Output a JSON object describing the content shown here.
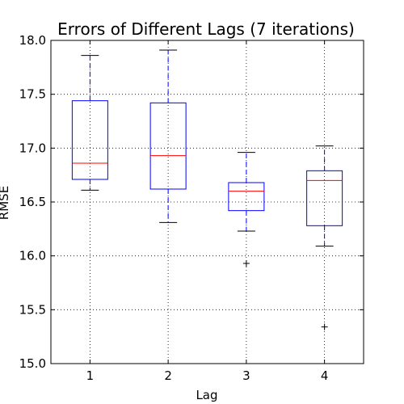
{
  "chart_data": {
    "type": "boxplot",
    "title": "Errors of Different Lags (7 iterations)",
    "xlabel": "Lag",
    "ylabel": "RMSE",
    "categories": [
      "1",
      "2",
      "3",
      "4"
    ],
    "ylim": [
      15.0,
      18.0
    ],
    "yticks": [
      15.0,
      15.5,
      16.0,
      16.5,
      17.0,
      17.5,
      18.0
    ],
    "ytick_labels": [
      "15.0",
      "15.5",
      "16.0",
      "16.5",
      "17.0",
      "17.5",
      "18.0"
    ],
    "grid": true,
    "boxes": [
      {
        "category": "1",
        "whisker_low": 16.61,
        "q1": 16.71,
        "median": 16.86,
        "q3": 17.44,
        "whisker_high": 17.86,
        "outliers": []
      },
      {
        "category": "2",
        "whisker_low": 16.31,
        "q1": 16.62,
        "median": 16.93,
        "q3": 17.42,
        "whisker_high": 17.91,
        "outliers": []
      },
      {
        "category": "3",
        "whisker_low": 16.23,
        "q1": 16.42,
        "median": 16.6,
        "q3": 16.68,
        "whisker_high": 16.96,
        "outliers": [
          15.93
        ]
      },
      {
        "category": "4",
        "whisker_low": 16.09,
        "q1": 16.28,
        "median": 16.7,
        "q3": 16.79,
        "whisker_high": 17.02,
        "outliers": [
          15.34
        ]
      }
    ],
    "colors": {
      "box": "#0000ff",
      "whisker": "#0000ff",
      "median": "#ff0000",
      "cap": "#000000",
      "outlier": "#000000",
      "grid": "#000000",
      "axes": "#000000"
    }
  }
}
